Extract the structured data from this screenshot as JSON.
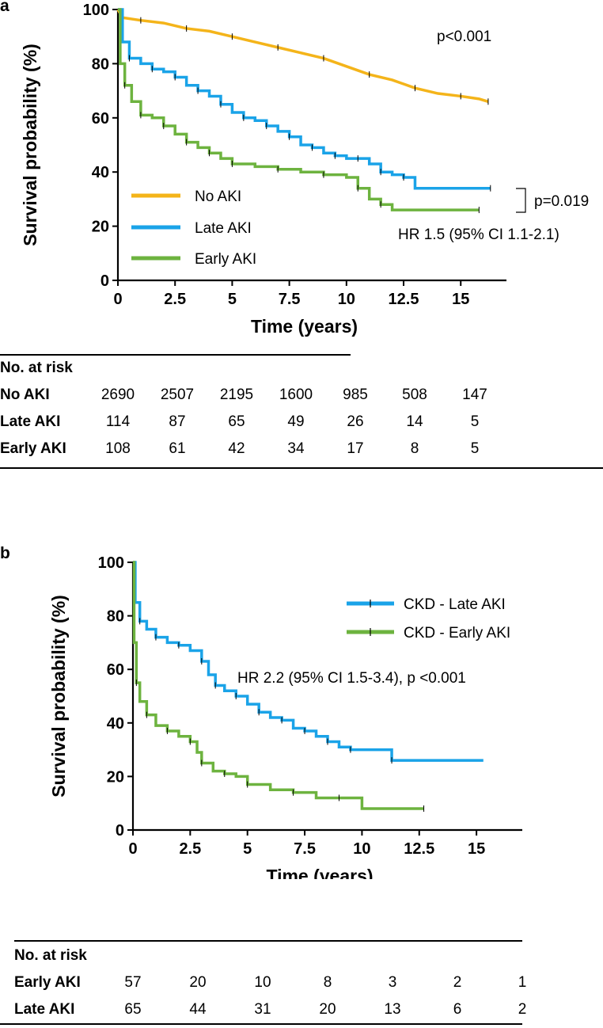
{
  "colors": {
    "no_aki": "#f4b41a",
    "late_aki": "#1aa3e8",
    "early_aki": "#6db33f",
    "axis": "#000000"
  },
  "chart_data": [
    {
      "panel": "a",
      "type": "line",
      "subtype": "kaplan-meier",
      "xlabel": "Time (years)",
      "ylabel": "Survival probability (%)",
      "xlim": [
        0,
        17
      ],
      "ylim": [
        0,
        100
      ],
      "xticks": [
        "0",
        "2.5",
        "5",
        "7.5",
        "10",
        "12.5",
        "15"
      ],
      "xtick_values": [
        0,
        2.5,
        5,
        7.5,
        10,
        12.5,
        15
      ],
      "yticks": [
        "0",
        "20",
        "40",
        "60",
        "80",
        "100"
      ],
      "ytick_values": [
        0,
        20,
        40,
        60,
        80,
        100
      ],
      "legend_position": "bottom-left",
      "annotations": {
        "p_overall": "p<0.001",
        "p_pair": "p=0.019",
        "hr": "HR 1.5 (95% CI 1.1-2.1)"
      },
      "series": [
        {
          "name": "No AKI",
          "color_key": "no_aki",
          "x": [
            0,
            0.2,
            1,
            2,
            3,
            4,
            5,
            6,
            7,
            8,
            9,
            10,
            11,
            12,
            13,
            14,
            15,
            15.8,
            16.2
          ],
          "y": [
            100,
            97,
            96,
            95,
            93,
            92,
            90,
            88,
            86,
            84,
            82,
            79,
            76,
            74,
            71,
            69,
            68,
            67,
            66
          ]
        },
        {
          "name": "Late AKI",
          "color_key": "late_aki",
          "step": true,
          "x": [
            0,
            0.2,
            0.5,
            1,
            1.5,
            2,
            2.5,
            3,
            3.5,
            4,
            4.5,
            5,
            5.5,
            6,
            6.5,
            7,
            7.5,
            8,
            8.5,
            9,
            9.5,
            10,
            10.5,
            11,
            11.5,
            12,
            12.5,
            13,
            16.3
          ],
          "y": [
            100,
            88,
            82,
            80,
            78,
            77,
            75,
            72,
            70,
            68,
            65,
            62,
            60,
            59,
            57,
            55,
            53,
            50,
            49,
            47,
            46,
            45,
            45,
            43,
            40,
            39,
            38,
            34,
            34
          ]
        },
        {
          "name": "Early AKI",
          "color_key": "early_aki",
          "step": true,
          "x": [
            0,
            0.1,
            0.3,
            0.6,
            1,
            1.5,
            2,
            2.5,
            3,
            3.5,
            4,
            4.5,
            5,
            6,
            7,
            8,
            9,
            10,
            10.5,
            11,
            11.5,
            12,
            15.8
          ],
          "y": [
            100,
            80,
            72,
            66,
            61,
            60,
            57,
            54,
            51,
            49,
            47,
            45,
            43,
            42,
            41,
            40,
            39,
            38,
            34,
            30,
            28,
            26,
            26
          ]
        }
      ],
      "risk_table": {
        "title": "No. at risk",
        "rows": [
          {
            "label": "No AKI",
            "values": [
              "2690",
              "2507",
              "2195",
              "1600",
              "985",
              "508",
              "147"
            ]
          },
          {
            "label": "Late AKI",
            "values": [
              "114",
              "87",
              "65",
              "49",
              "26",
              "14",
              "5"
            ]
          },
          {
            "label": "Early AKI",
            "values": [
              "108",
              "61",
              "42",
              "34",
              "17",
              "8",
              "5"
            ]
          }
        ]
      }
    },
    {
      "panel": "b",
      "type": "line",
      "subtype": "kaplan-meier",
      "xlabel": "Time (years)",
      "ylabel": "Survival probability (%)",
      "xlim": [
        0,
        17
      ],
      "ylim": [
        0,
        100
      ],
      "xticks": [
        "0",
        "2.5",
        "5",
        "7.5",
        "10",
        "12.5",
        "15"
      ],
      "xtick_values": [
        0,
        2.5,
        5,
        7.5,
        10,
        12.5,
        15
      ],
      "yticks": [
        "0",
        "20",
        "40",
        "60",
        "80",
        "100"
      ],
      "ytick_values": [
        0,
        20,
        40,
        60,
        80,
        100
      ],
      "legend_position": "top-right",
      "annotations": {
        "hr": "HR 2.2 (95% CI 1.5-3.4), p <0.001"
      },
      "series": [
        {
          "name": "CKD - Late AKI",
          "color_key": "late_aki",
          "step": true,
          "x": [
            0,
            0.1,
            0.3,
            0.6,
            1,
            1.5,
            2,
            2.5,
            3,
            3.3,
            3.6,
            4,
            4.5,
            5,
            5.5,
            6,
            6.5,
            7,
            7.5,
            8,
            8.5,
            9,
            9.5,
            10,
            11.3,
            15.3
          ],
          "y": [
            100,
            85,
            78,
            75,
            72,
            70,
            69,
            67,
            63,
            58,
            54,
            52,
            50,
            47,
            44,
            42,
            41,
            38,
            37,
            35,
            33,
            31,
            30,
            30,
            26,
            26
          ]
        },
        {
          "name": "CKD - Early AKI",
          "color_key": "early_aki",
          "step": true,
          "x": [
            0,
            0.05,
            0.15,
            0.3,
            0.6,
            1,
            1.5,
            2,
            2.5,
            2.8,
            3,
            3.5,
            4,
            4.5,
            5,
            6,
            7,
            8,
            9,
            10,
            12.7
          ],
          "y": [
            100,
            70,
            55,
            48,
            43,
            39,
            37,
            35,
            33,
            29,
            25,
            22,
            21,
            20,
            17,
            15,
            14,
            12,
            12,
            8,
            8
          ]
        }
      ],
      "risk_table": {
        "title": "No. at risk",
        "rows": [
          {
            "label": "Early AKI",
            "values": [
              "57",
              "20",
              "10",
              "8",
              "3",
              "2",
              "1"
            ]
          },
          {
            "label": "Late AKI",
            "values": [
              "65",
              "44",
              "31",
              "20",
              "13",
              "6",
              "2"
            ]
          }
        ]
      }
    }
  ],
  "panel_labels": {
    "a": "a",
    "b": "b"
  }
}
